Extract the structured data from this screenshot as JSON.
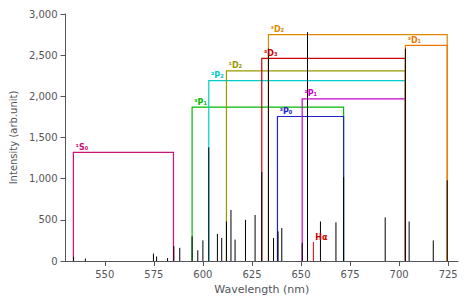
{
  "chart_data": {
    "type": "spectrum",
    "xlabel": "Wavelength (nm)",
    "ylabel": "Intensity (arb.unit)",
    "xlim": [
      530,
      730
    ],
    "ylim": [
      0,
      3000
    ],
    "xticks": [
      550,
      575,
      600,
      625,
      650,
      675,
      700,
      725
    ],
    "yticks": [
      0,
      500,
      1000,
      1500,
      2000,
      2500,
      3000
    ],
    "grid": false,
    "x": [
      534.1,
      540.1,
      574.8,
      576.4,
      582.0,
      585.2,
      588.2,
      594.5,
      597.4,
      600.0,
      603.0,
      607.4,
      609.6,
      612.0,
      614.3,
      616.4,
      621.7,
      626.6,
      630.0,
      633.4,
      636.0,
      638.3,
      640.2,
      650.6,
      653.3,
      656.3,
      659.9,
      667.8,
      671.7,
      692.9,
      703.2,
      705.1,
      717.4,
      724.5
    ],
    "values": [
      50,
      30,
      90,
      55,
      35,
      180,
      160,
      300,
      130,
      250,
      1380,
      330,
      280,
      480,
      620,
      260,
      500,
      560,
      1080,
      2580,
      280,
      360,
      400,
      220,
      2780,
      230,
      480,
      470,
      1020,
      530,
      2580,
      480,
      250,
      980
    ],
    "colors": [
      "#000000",
      "#000000",
      "#000000",
      "#000000",
      "#000000",
      "#000000",
      "#000000",
      "#000000",
      "#000000",
      "#000000",
      "#000000",
      "#000000",
      "#000000",
      "#000000",
      "#000000",
      "#000000",
      "#000000",
      "#000000",
      "#000000",
      "#000000",
      "#000000",
      "#000000",
      "#000000",
      "#000000",
      "#000000",
      "#cc0000",
      "#000000",
      "#000000",
      "#000000",
      "#000000",
      "#000000",
      "#000000",
      "#000000",
      "#000000"
    ],
    "annotations": [
      {
        "text": "Hα",
        "x": 656.3,
        "y": 230,
        "color": "#cc0000"
      }
    ],
    "boxes": [
      {
        "label": "¹S₀",
        "color": "#cc1177",
        "x_left": 534.0,
        "x_right": 585.0,
        "y_top": 1320
      },
      {
        "label": "³P₁",
        "color": "#00bb00",
        "x_left": 594.5,
        "x_right": 671.7,
        "y_top": 1870
      },
      {
        "label": "²P₂",
        "color": "#00cccc",
        "x_left": 603.0,
        "x_right": 703.2,
        "y_top": 2190
      },
      {
        "label": "¹D₂",
        "color": "#999900",
        "x_left": 612.0,
        "x_right": 703.2,
        "y_top": 2310
      },
      {
        "label": "³D₃",
        "color": "#cc0000",
        "x_left": 630.0,
        "x_right": 703.2,
        "y_top": 2460
      },
      {
        "label": "³D₂",
        "color": "#dd8800",
        "x_left": 633.4,
        "x_right": 724.5,
        "y_top": 2750
      },
      {
        "label": "³P₀",
        "color": "#2222cc",
        "x_left": 638.0,
        "x_right": 671.7,
        "y_top": 1755
      },
      {
        "label": "¹P₁",
        "color": "#cc00cc",
        "x_left": 650.6,
        "x_right": 703.2,
        "y_top": 1970
      },
      {
        "label": "³D₁",
        "color": "#ee7700",
        "x_left": 703.2,
        "x_right": 724.5,
        "y_top": 2620
      }
    ]
  }
}
